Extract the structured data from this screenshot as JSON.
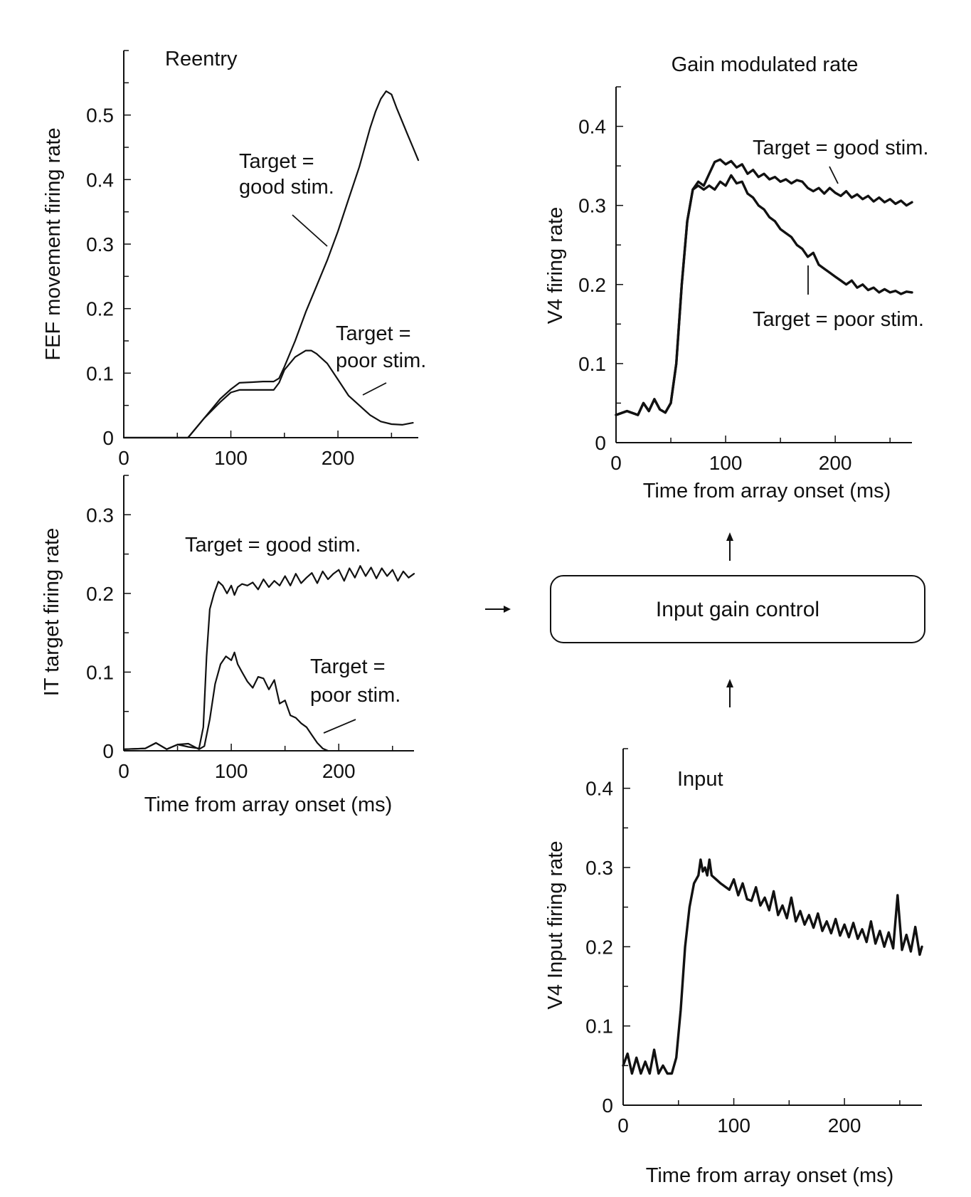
{
  "chart_data": [
    {
      "id": "fef",
      "type": "line",
      "title": "Reentry",
      "xlabel": "",
      "ylabel": "FEF movement firing rate",
      "xlim": [
        0,
        275
      ],
      "ylim": [
        0,
        0.6
      ],
      "xticks": [
        0,
        100,
        200
      ],
      "yticks": [
        0,
        0.1,
        0.2,
        0.3,
        0.4,
        0.5
      ],
      "ytick_labels": [
        "0",
        "0.1",
        "0.2",
        "0.3",
        "0.4",
        "0.5"
      ],
      "series": [
        {
          "name": "Target = good stim.",
          "label_lines": [
            "Target =",
            "good stim."
          ],
          "x": [
            0,
            60,
            75,
            90,
            100,
            108,
            120,
            130,
            140,
            145,
            150,
            160,
            170,
            180,
            190,
            200,
            210,
            220,
            230,
            235,
            240,
            245,
            250,
            255,
            260,
            265,
            270,
            275
          ],
          "y": [
            0,
            0,
            0.03,
            0.06,
            0.075,
            0.085,
            0.086,
            0.087,
            0.087,
            0.092,
            0.11,
            0.15,
            0.195,
            0.235,
            0.275,
            0.32,
            0.37,
            0.42,
            0.48,
            0.505,
            0.525,
            0.537,
            0.532,
            0.51,
            0.49,
            0.47,
            0.45,
            0.43
          ]
        },
        {
          "name": "Target = poor stim.",
          "label_lines": [
            "Target =",
            "poor stim."
          ],
          "x": [
            0,
            60,
            75,
            90,
            100,
            108,
            120,
            130,
            140,
            145,
            150,
            160,
            170,
            175,
            180,
            190,
            200,
            210,
            220,
            230,
            240,
            250,
            260,
            270
          ],
          "y": [
            0,
            0,
            0.03,
            0.055,
            0.07,
            0.074,
            0.074,
            0.074,
            0.074,
            0.085,
            0.105,
            0.125,
            0.135,
            0.135,
            0.13,
            0.115,
            0.09,
            0.065,
            0.05,
            0.035,
            0.025,
            0.021,
            0.02,
            0.023
          ]
        }
      ]
    },
    {
      "id": "it",
      "type": "line",
      "title": "",
      "xlabel": "Time from array onset (ms)",
      "ylabel": "IT target firing rate",
      "xlim": [
        0,
        270
      ],
      "ylim": [
        0,
        0.35
      ],
      "xticks": [
        0,
        100,
        200
      ],
      "yticks": [
        0,
        0.1,
        0.2,
        0.3
      ],
      "ytick_labels": [
        "0",
        "0.1",
        "0.2",
        "0.3"
      ],
      "series": [
        {
          "name": "Target = good stim.",
          "label_lines": [
            "Target = good stim."
          ],
          "x": [
            0,
            20,
            30,
            40,
            50,
            60,
            70,
            74,
            77,
            80,
            84,
            88,
            92,
            96,
            100,
            103,
            106,
            110,
            115,
            120,
            125,
            130,
            135,
            140,
            145,
            150,
            155,
            160,
            165,
            170,
            175,
            180,
            185,
            190,
            195,
            200,
            205,
            210,
            215,
            220,
            225,
            230,
            235,
            240,
            245,
            250,
            255,
            260,
            265,
            270
          ],
          "y": [
            0.002,
            0.003,
            0.01,
            0.002,
            0.008,
            0.005,
            0.003,
            0.03,
            0.12,
            0.18,
            0.2,
            0.215,
            0.21,
            0.2,
            0.21,
            0.198,
            0.208,
            0.212,
            0.21,
            0.214,
            0.205,
            0.218,
            0.208,
            0.216,
            0.21,
            0.222,
            0.21,
            0.225,
            0.213,
            0.22,
            0.226,
            0.213,
            0.228,
            0.218,
            0.225,
            0.23,
            0.216,
            0.232,
            0.22,
            0.235,
            0.222,
            0.233,
            0.219,
            0.232,
            0.222,
            0.23,
            0.216,
            0.228,
            0.22,
            0.225
          ]
        },
        {
          "name": "Target = poor stim.",
          "label_lines": [
            "Target =",
            "poor stim."
          ],
          "x": [
            0,
            20,
            30,
            40,
            50,
            60,
            70,
            75,
            80,
            85,
            90,
            95,
            100,
            103,
            106,
            110,
            115,
            120,
            125,
            130,
            135,
            140,
            145,
            150,
            155,
            160,
            165,
            170,
            175,
            180,
            185,
            190
          ],
          "y": [
            0.002,
            0.003,
            0.01,
            0.002,
            0.008,
            0.009,
            0.002,
            0.006,
            0.04,
            0.085,
            0.11,
            0.12,
            0.115,
            0.125,
            0.11,
            0.1,
            0.088,
            0.08,
            0.094,
            0.092,
            0.078,
            0.09,
            0.06,
            0.064,
            0.045,
            0.042,
            0.035,
            0.03,
            0.02,
            0.01,
            0.003,
            0.0
          ]
        }
      ]
    },
    {
      "id": "v4gain",
      "type": "line",
      "title": "Gain modulated rate",
      "xlabel": "Time from array onset (ms)",
      "ylabel": "V4 firing rate",
      "xlim": [
        0,
        270
      ],
      "ylim": [
        0,
        0.45
      ],
      "xticks": [
        0,
        100,
        200
      ],
      "yticks": [
        0,
        0.1,
        0.2,
        0.3,
        0.4
      ],
      "ytick_labels": [
        "0",
        "0.1",
        "0.2",
        "0.3",
        "0.4"
      ],
      "series": [
        {
          "name": "Target = good stim.",
          "label_lines": [
            "Target = good stim."
          ],
          "x": [
            0,
            10,
            20,
            25,
            30,
            35,
            40,
            45,
            50,
            55,
            60,
            65,
            70,
            75,
            80,
            85,
            90,
            95,
            100,
            105,
            110,
            115,
            120,
            125,
            130,
            135,
            140,
            145,
            150,
            155,
            160,
            165,
            170,
            175,
            180,
            185,
            190,
            195,
            200,
            205,
            210,
            215,
            220,
            225,
            230,
            235,
            240,
            245,
            250,
            255,
            260,
            265,
            270
          ],
          "y": [
            0.035,
            0.04,
            0.035,
            0.05,
            0.04,
            0.055,
            0.042,
            0.038,
            0.05,
            0.1,
            0.2,
            0.28,
            0.32,
            0.33,
            0.325,
            0.34,
            0.355,
            0.358,
            0.352,
            0.356,
            0.348,
            0.352,
            0.34,
            0.345,
            0.336,
            0.34,
            0.333,
            0.336,
            0.33,
            0.333,
            0.328,
            0.332,
            0.33,
            0.322,
            0.318,
            0.322,
            0.315,
            0.322,
            0.316,
            0.312,
            0.318,
            0.31,
            0.314,
            0.308,
            0.312,
            0.305,
            0.31,
            0.304,
            0.308,
            0.302,
            0.306,
            0.3,
            0.304
          ]
        },
        {
          "name": "Target = poor stim.",
          "label_lines": [
            "Target = poor stim."
          ],
          "x": [
            0,
            10,
            20,
            25,
            30,
            35,
            40,
            45,
            50,
            55,
            60,
            65,
            70,
            75,
            80,
            85,
            90,
            95,
            100,
            105,
            110,
            115,
            120,
            125,
            130,
            135,
            140,
            145,
            150,
            155,
            160,
            165,
            170,
            175,
            180,
            185,
            190,
            195,
            200,
            205,
            210,
            215,
            220,
            225,
            230,
            235,
            240,
            245,
            250,
            255,
            260,
            265,
            270
          ],
          "y": [
            0.035,
            0.04,
            0.035,
            0.05,
            0.04,
            0.055,
            0.042,
            0.038,
            0.05,
            0.1,
            0.2,
            0.28,
            0.32,
            0.325,
            0.32,
            0.325,
            0.32,
            0.33,
            0.325,
            0.338,
            0.328,
            0.33,
            0.315,
            0.31,
            0.3,
            0.295,
            0.285,
            0.28,
            0.27,
            0.265,
            0.26,
            0.25,
            0.245,
            0.235,
            0.24,
            0.225,
            0.22,
            0.215,
            0.21,
            0.205,
            0.2,
            0.205,
            0.196,
            0.2,
            0.193,
            0.196,
            0.19,
            0.194,
            0.19,
            0.192,
            0.188,
            0.191,
            0.19
          ]
        }
      ]
    },
    {
      "id": "v4input",
      "type": "line",
      "title": "Input",
      "xlabel": "Time from array onset (ms)",
      "ylabel": "V4 Input firing rate",
      "xlim": [
        0,
        270
      ],
      "ylim": [
        0,
        0.45
      ],
      "xticks": [
        0,
        100,
        200
      ],
      "yticks": [
        0,
        0.1,
        0.2,
        0.3,
        0.4
      ],
      "ytick_labels": [
        "0",
        "0.1",
        "0.2",
        "0.3",
        "0.4"
      ],
      "series": [
        {
          "name": "Input",
          "x": [
            0,
            4,
            8,
            12,
            16,
            20,
            24,
            28,
            32,
            36,
            40,
            44,
            48,
            52,
            56,
            60,
            64,
            68,
            70,
            72,
            74,
            76,
            78,
            80,
            84,
            88,
            92,
            96,
            100,
            104,
            108,
            112,
            116,
            120,
            124,
            128,
            132,
            136,
            140,
            144,
            148,
            152,
            156,
            160,
            164,
            168,
            172,
            176,
            180,
            184,
            188,
            192,
            196,
            200,
            204,
            208,
            212,
            216,
            220,
            224,
            228,
            232,
            236,
            240,
            244,
            248,
            252,
            256,
            260,
            264,
            268,
            270
          ],
          "y": [
            0.05,
            0.065,
            0.04,
            0.06,
            0.04,
            0.055,
            0.04,
            0.07,
            0.04,
            0.05,
            0.04,
            0.04,
            0.06,
            0.12,
            0.2,
            0.25,
            0.28,
            0.29,
            0.31,
            0.295,
            0.3,
            0.29,
            0.31,
            0.29,
            0.285,
            0.28,
            0.276,
            0.272,
            0.285,
            0.265,
            0.28,
            0.26,
            0.258,
            0.275,
            0.252,
            0.262,
            0.246,
            0.27,
            0.24,
            0.252,
            0.236,
            0.262,
            0.232,
            0.245,
            0.228,
            0.24,
            0.224,
            0.242,
            0.22,
            0.232,
            0.217,
            0.235,
            0.214,
            0.228,
            0.212,
            0.23,
            0.21,
            0.222,
            0.206,
            0.232,
            0.204,
            0.22,
            0.2,
            0.218,
            0.198,
            0.265,
            0.196,
            0.215,
            0.194,
            0.225,
            0.19,
            0.2
          ]
        }
      ]
    }
  ],
  "diagram": {
    "box_label": "Input gain control"
  }
}
